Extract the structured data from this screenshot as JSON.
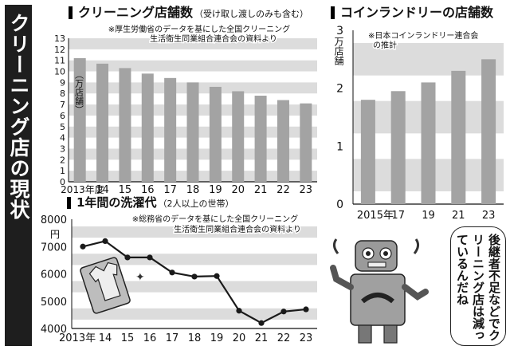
{
  "side_title": "クリーニング店の現状",
  "robot_speech": "後継者不足などでクリーニング店は減っているんだね",
  "chart_data": [
    {
      "type": "bar",
      "title": "クリーニング店舗数",
      "subtitle": "（受け取し渡しのみも含む）",
      "note_line1": "※厚生労働省のデータを基にした全国クリーニング",
      "note_line2": "生活衛生同業組合連合会の資料より",
      "ylabel": "（万店舗）",
      "categories": [
        "2013年度",
        "14",
        "15",
        "16",
        "17",
        "18",
        "19",
        "20",
        "21",
        "22",
        "23"
      ],
      "values": [
        11.2,
        10.7,
        10.3,
        9.8,
        9.4,
        9.0,
        8.6,
        8.2,
        7.8,
        7.4,
        7.1
      ],
      "ylim": [
        0,
        13
      ],
      "yticks": [
        "0",
        "1",
        "2",
        "3",
        "4",
        "5",
        "6",
        "7",
        "8",
        "9",
        "10",
        "11",
        "12",
        "13"
      ],
      "bar_color": "#a3a3a3",
      "band_color": "#dcdcdc"
    },
    {
      "type": "bar",
      "title": "コインランドリーの店舗数",
      "note_line1": "※日本コインランドリー連合会",
      "note_line2": "の推計",
      "ylabel": "万店舗",
      "categories": [
        "2015年",
        "17",
        "19",
        "21",
        "23"
      ],
      "values": [
        1.8,
        1.95,
        2.1,
        2.3,
        2.5
      ],
      "ylim": [
        0,
        3
      ],
      "yticks": [
        "0",
        "1",
        "2",
        "3"
      ],
      "bar_color": "#a3a3a3",
      "band_color": "#dcdcdc"
    },
    {
      "type": "line",
      "title": "1年間の洗濯代",
      "subtitle": "（2人以上の世帯）",
      "note_line1": "※総務省のデータを基にした全国クリーニング",
      "note_line2": "生活衛生同業組合連合会の資料より",
      "ylabel": "円",
      "categories": [
        "2013年",
        "14",
        "15",
        "16",
        "17",
        "18",
        "19",
        "20",
        "21",
        "22",
        "23"
      ],
      "values": [
        7000,
        7200,
        6600,
        6600,
        6050,
        5900,
        5920,
        4650,
        4200,
        4620,
        4700
      ],
      "ylim": [
        4000,
        8000
      ],
      "yticks": [
        "4000",
        "5000",
        "6000",
        "7000",
        "8000"
      ],
      "line_color": "#1a1a1a",
      "band_color": "#dcdcdc"
    }
  ]
}
